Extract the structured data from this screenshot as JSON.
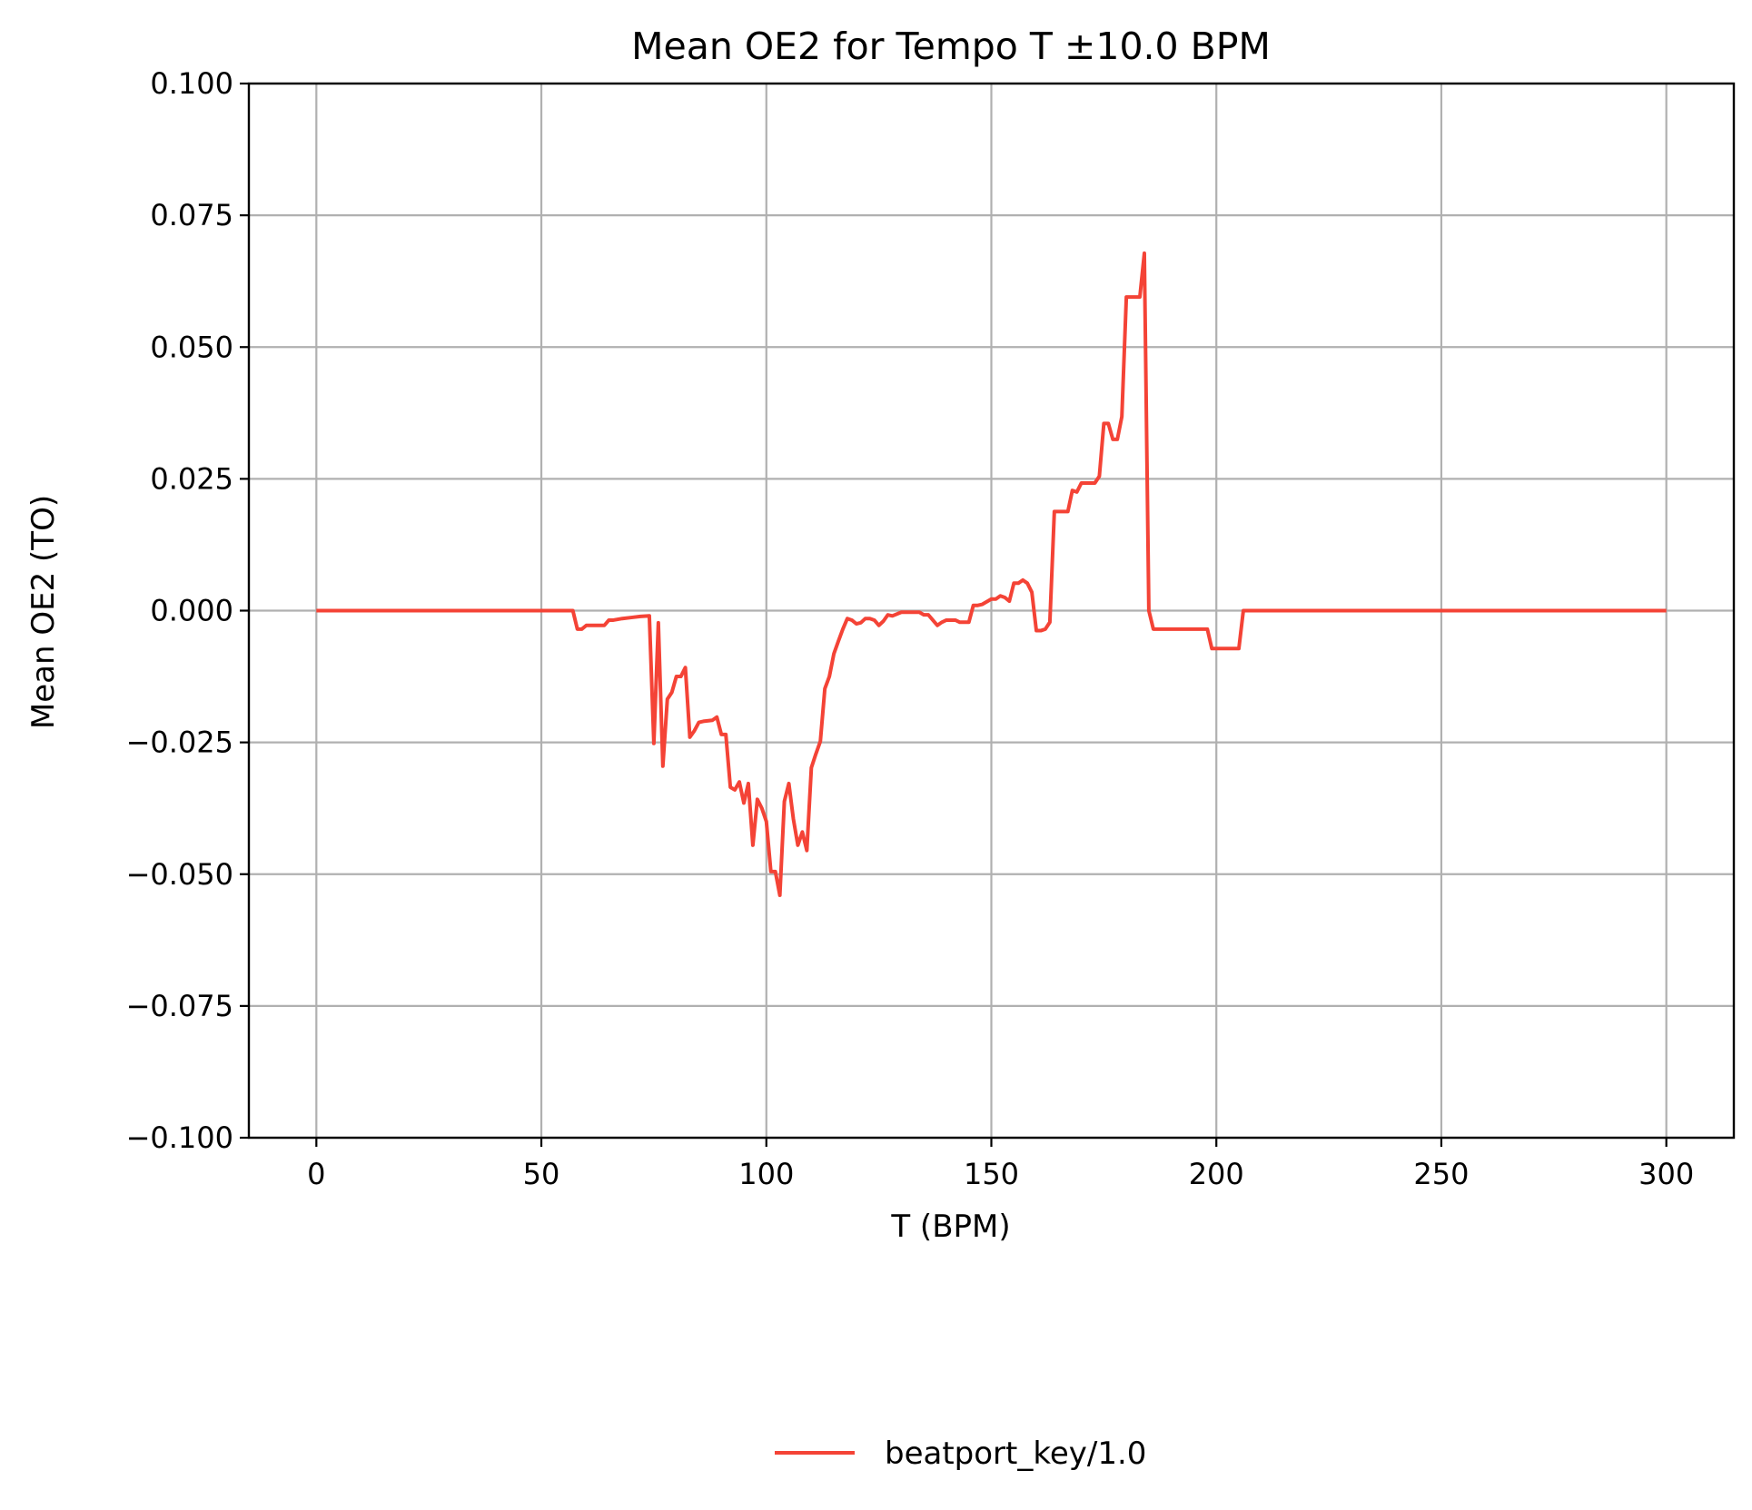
{
  "chart_data": {
    "type": "line",
    "title": "Mean OE2 for Tempo T ±10.0 BPM",
    "xlabel": "T (BPM)",
    "ylabel": "Mean OE2 (TO)",
    "xlim": [
      -15,
      315
    ],
    "ylim": [
      -0.1,
      0.1
    ],
    "xticks": [
      0,
      50,
      100,
      150,
      200,
      250,
      300
    ],
    "xtick_labels": [
      "0",
      "50",
      "100",
      "150",
      "200",
      "250",
      "300"
    ],
    "yticks": [
      -0.1,
      -0.075,
      -0.05,
      -0.025,
      0.0,
      0.025,
      0.05,
      0.075,
      0.1
    ],
    "ytick_labels": [
      "−0.100",
      "−0.075",
      "−0.050",
      "−0.025",
      "0.000",
      "0.025",
      "0.050",
      "0.075",
      "0.100"
    ],
    "grid": true,
    "legend_position": "bottom-center",
    "series": [
      {
        "name": "beatport_key/1.0",
        "color": "#f44336",
        "x": [
          0,
          57,
          58,
          59,
          60,
          62,
          64,
          65,
          66,
          68,
          70,
          72,
          74,
          75,
          76,
          77,
          78,
          79,
          80,
          81,
          82,
          83,
          84,
          85,
          86,
          88,
          89,
          90,
          91,
          92,
          93,
          94,
          95,
          96,
          97,
          98,
          99,
          100,
          101,
          102,
          103,
          104,
          105,
          106,
          107,
          108,
          109,
          110,
          111,
          112,
          113,
          114,
          115,
          116,
          117,
          118,
          119,
          120,
          121,
          122,
          123,
          124,
          125,
          126,
          127,
          128,
          130,
          132,
          134,
          135,
          136,
          137,
          138,
          139,
          140,
          142,
          143,
          144,
          145,
          146,
          147,
          148,
          150,
          151,
          152,
          153,
          154,
          155,
          156,
          157,
          158,
          159,
          160,
          161,
          162,
          163,
          164,
          165,
          167,
          168,
          169,
          170,
          171,
          173,
          174,
          175,
          176,
          177,
          178,
          179,
          180,
          181,
          183,
          184,
          185,
          186,
          190,
          198,
          199,
          205,
          206,
          300
        ],
        "y": [
          0.0,
          0.0,
          -0.0035,
          -0.0035,
          -0.0028,
          -0.0028,
          -0.0028,
          -0.0018,
          -0.0018,
          -0.0015,
          -0.0013,
          -0.0011,
          -0.001,
          -0.0252,
          -0.0023,
          -0.0295,
          -0.0168,
          -0.0155,
          -0.0125,
          -0.0125,
          -0.0108,
          -0.024,
          -0.0228,
          -0.0212,
          -0.021,
          -0.0208,
          -0.0202,
          -0.0235,
          -0.0235,
          -0.0335,
          -0.034,
          -0.0325,
          -0.0365,
          -0.0328,
          -0.0445,
          -0.0358,
          -0.0375,
          -0.04,
          -0.0495,
          -0.0495,
          -0.054,
          -0.0362,
          -0.0328,
          -0.0395,
          -0.0445,
          -0.042,
          -0.0455,
          -0.0298,
          -0.0272,
          -0.0248,
          -0.0148,
          -0.0125,
          -0.0082,
          -0.0058,
          -0.0035,
          -0.0015,
          -0.0018,
          -0.0025,
          -0.0023,
          -0.0015,
          -0.0015,
          -0.0018,
          -0.0028,
          -0.002,
          -0.0008,
          -0.001,
          -0.0003,
          -0.0003,
          -0.0003,
          -0.0008,
          -0.0008,
          -0.0018,
          -0.0028,
          -0.0022,
          -0.0018,
          -0.0018,
          -0.0022,
          -0.0022,
          -0.0022,
          0.001,
          0.001,
          0.0012,
          0.0022,
          0.0022,
          0.0028,
          0.0025,
          0.0018,
          0.0052,
          0.0052,
          0.0058,
          0.0052,
          0.0035,
          -0.0038,
          -0.0038,
          -0.0035,
          -0.0022,
          0.0188,
          0.0188,
          0.0188,
          0.0228,
          0.0225,
          0.0242,
          0.0242,
          0.0242,
          0.0255,
          0.0355,
          0.0355,
          0.0325,
          0.0325,
          0.0368,
          0.0595,
          0.0595,
          0.0595,
          0.0678,
          0.0,
          -0.0035,
          -0.0035,
          -0.0035,
          -0.0072,
          -0.0072,
          0.0,
          0.0
        ]
      }
    ]
  }
}
